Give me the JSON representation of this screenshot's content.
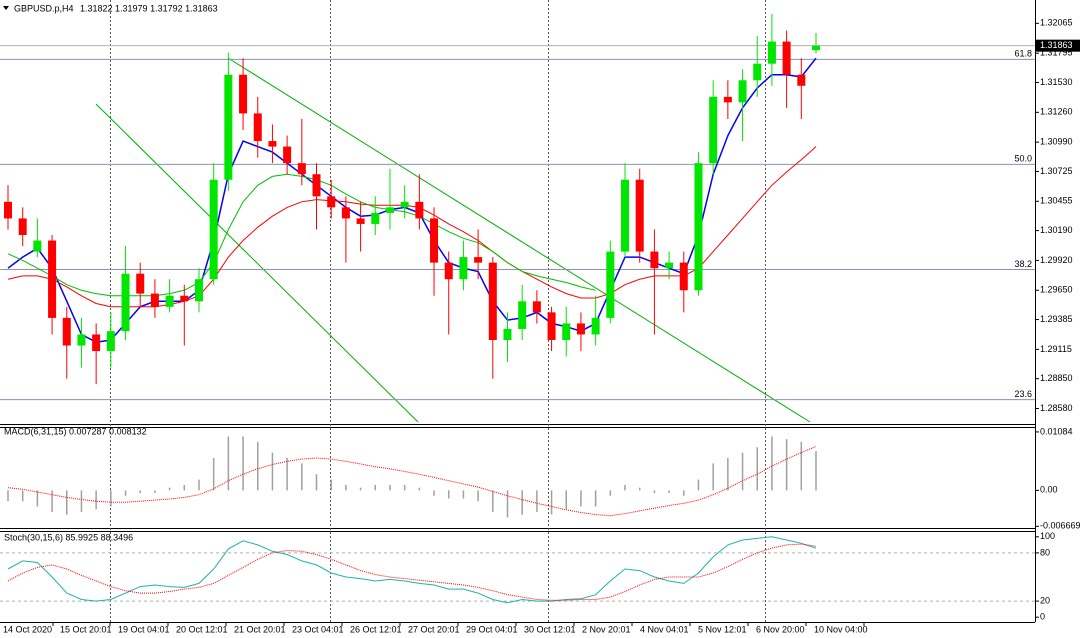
{
  "header": {
    "symbol": "GBPUSD.p,H4",
    "quote": "1.31822 1.31979 1.31792 1.31863"
  },
  "main": {
    "ylim": [
      1.2844,
      1.3224
    ],
    "price_ticks": [
      1.32065,
      1.31795,
      {
        "value": 1.3153,
        "label": "1.31530"
      },
      {
        "value": 1.3126,
        "label": "1.31260"
      },
      {
        "value": 1.3099,
        "label": "1.30990"
      },
      1.30725,
      1.30455,
      {
        "value": 1.3019,
        "label": "1.30190"
      },
      {
        "value": 1.2992,
        "label": "1.29920"
      },
      {
        "value": 1.2965,
        "label": "1.29650"
      },
      1.29385,
      1.29115,
      {
        "value": 1.2885,
        "label": "1.28850"
      },
      {
        "value": 1.2858,
        "label": "1.28580"
      }
    ],
    "current_price": 1.31863,
    "fib_levels": [
      {
        "level": "61.8",
        "price": 1.31739
      },
      {
        "level": "50.0",
        "price": 1.30789
      },
      {
        "level": "38.2",
        "price": 1.29838
      },
      {
        "level": "23.6",
        "price": 1.28661
      }
    ],
    "bull_color": "#00e600",
    "bear_color": "#ff0000",
    "candles": [
      [
        1.3045,
        1.306,
        1.302,
        1.303
      ],
      [
        1.303,
        1.304,
        1.3005,
        1.3015
      ],
      [
        1.3,
        1.303,
        1.2995,
        1.301
      ],
      [
        1.301,
        1.3015,
        1.2925,
        1.294
      ],
      [
        1.294,
        1.295,
        1.2885,
        1.2915
      ],
      [
        1.2915,
        1.294,
        1.2895,
        1.2925
      ],
      [
        1.2925,
        1.2935,
        1.288,
        1.291
      ],
      [
        1.291,
        1.2945,
        1.2895,
        1.2928
      ],
      [
        1.2928,
        1.3005,
        1.292,
        1.298
      ],
      [
        1.298,
        1.299,
        1.295,
        1.2962
      ],
      [
        1.2962,
        1.2975,
        1.294,
        1.295
      ],
      [
        1.295,
        1.2975,
        1.2945,
        1.296
      ],
      [
        1.296,
        1.297,
        1.2915,
        1.2955
      ],
      [
        1.2955,
        1.2985,
        1.2945,
        1.2975
      ],
      [
        1.2975,
        1.308,
        1.297,
        1.3065
      ],
      [
        1.3065,
        1.318,
        1.3055,
        1.316
      ],
      [
        1.316,
        1.3175,
        1.311,
        1.3125
      ],
      [
        1.3125,
        1.314,
        1.3085,
        1.31
      ],
      [
        1.31,
        1.3115,
        1.308,
        1.3095
      ],
      [
        1.3095,
        1.3105,
        1.307,
        1.308
      ],
      [
        1.308,
        1.312,
        1.306,
        1.307
      ],
      [
        1.307,
        1.308,
        1.302,
        1.305
      ],
      [
        1.305,
        1.3065,
        1.303,
        1.304
      ],
      [
        1.304,
        1.305,
        1.299,
        1.303
      ],
      [
        1.303,
        1.3045,
        1.3,
        1.3025
      ],
      [
        1.3025,
        1.305,
        1.3015,
        1.3035
      ],
      [
        1.3035,
        1.3075,
        1.302,
        1.304
      ],
      [
        1.304,
        1.306,
        1.303,
        1.3045
      ],
      [
        1.3045,
        1.307,
        1.302,
        1.303
      ],
      [
        1.303,
        1.304,
        1.296,
        1.299
      ],
      [
        1.299,
        1.3,
        1.2925,
        1.2975
      ],
      [
        1.2975,
        1.301,
        1.2965,
        1.2995
      ],
      [
        1.2995,
        1.302,
        1.2975,
        1.299
      ],
      [
        1.299,
        1.2995,
        1.2885,
        1.292
      ],
      [
        1.292,
        1.2945,
        1.29,
        1.293
      ],
      [
        1.293,
        1.297,
        1.292,
        1.2955
      ],
      [
        1.2955,
        1.2965,
        1.2935,
        1.2945
      ],
      [
        1.2945,
        1.295,
        1.291,
        1.292
      ],
      [
        1.292,
        1.295,
        1.2905,
        1.2935
      ],
      [
        1.2935,
        1.2945,
        1.291,
        1.2925
      ],
      [
        1.2925,
        1.296,
        1.2915,
        1.294
      ],
      [
        1.294,
        1.301,
        1.2935,
        1.3
      ],
      [
        1.3,
        1.308,
        1.2995,
        1.3065
      ],
      [
        1.3065,
        1.3075,
        1.299,
        1.3
      ],
      [
        1.3,
        1.302,
        1.2925,
        1.2985
      ],
      [
        1.2985,
        1.3,
        1.2975,
        1.299
      ],
      [
        1.299,
        1.3,
        1.2945,
        1.2965
      ],
      [
        1.2965,
        1.309,
        1.296,
        1.308
      ],
      [
        1.308,
        1.3155,
        1.307,
        1.314
      ],
      [
        1.314,
        1.3155,
        1.312,
        1.3135
      ],
      [
        1.3135,
        1.3165,
        1.31,
        1.3155
      ],
      [
        1.3155,
        1.3195,
        1.314,
        1.317
      ],
      [
        1.317,
        1.3215,
        1.315,
        1.319
      ],
      [
        1.319,
        1.32,
        1.313,
        1.316
      ],
      [
        1.316,
        1.3175,
        1.312,
        1.315
      ],
      [
        1.31822,
        1.31979,
        1.31792,
        1.31863
      ]
    ],
    "lines": [
      {
        "color": "#0000ff",
        "values": [
          1.2985,
          1.2995,
          1.3003,
          1.2985,
          1.2955,
          1.2925,
          1.2918,
          1.292,
          1.2935,
          1.295,
          1.2955,
          1.2955,
          1.2955,
          1.2965,
          1.301,
          1.307,
          1.31,
          1.3095,
          1.309,
          1.308,
          1.307,
          1.306,
          1.305,
          1.304,
          1.3032,
          1.3033,
          1.3038,
          1.304,
          1.3035,
          1.301,
          1.299,
          1.2985,
          1.2982,
          1.2955,
          1.2938,
          1.294,
          1.2945,
          1.2935,
          1.2932,
          1.2928,
          1.2935,
          1.2965,
          1.2995,
          1.2995,
          1.299,
          1.2985,
          1.298,
          1.3015,
          1.307,
          1.3105,
          1.313,
          1.3148,
          1.316,
          1.316,
          1.3158,
          1.3175
        ]
      },
      {
        "color": "#ff0000",
        "values": [
          1.2975,
          1.2978,
          1.2978,
          1.2975,
          1.2968,
          1.296,
          1.2953,
          1.295,
          1.295,
          1.295,
          1.295,
          1.2952,
          1.2955,
          1.296,
          1.2975,
          1.2995,
          1.301,
          1.3022,
          1.3032,
          1.304,
          1.3045,
          1.3047,
          1.3046,
          1.3045,
          1.3043,
          1.3042,
          1.3042,
          1.3042,
          1.304,
          1.3033,
          1.3025,
          1.3018,
          1.301,
          1.3,
          1.299,
          1.2982,
          1.2975,
          1.2968,
          1.2962,
          1.2958,
          1.2958,
          1.2962,
          1.297,
          1.2975,
          1.2978,
          1.2978,
          1.2978,
          1.2985,
          1.3,
          1.3015,
          1.303,
          1.3045,
          1.306,
          1.3072,
          1.3083,
          1.3095
        ]
      },
      {
        "color": "#00c000",
        "values": [
          1.2998,
          1.2992,
          1.2985,
          1.2978,
          1.297,
          1.2965,
          1.2962,
          1.296,
          1.296,
          1.296,
          1.296,
          1.2962,
          1.2965,
          1.2972,
          1.299,
          1.302,
          1.3045,
          1.306,
          1.3068,
          1.307,
          1.3068,
          1.3065,
          1.306,
          1.3052,
          1.3045,
          1.304,
          1.3038,
          1.3036,
          1.3032,
          1.3025,
          1.3018,
          1.3012,
          1.3008,
          1.3,
          1.299,
          1.2982,
          1.2978,
          1.2975,
          1.2972,
          1.2968,
          1.2965,
          null,
          null,
          null,
          null,
          null,
          null,
          null,
          null,
          null,
          null,
          null,
          null,
          null,
          null,
          null
        ]
      }
    ]
  },
  "macd": {
    "label": "MACD(6,31,15) 0.007287 0.008132",
    "ylim": [
      -0.00698,
      0.01157
    ],
    "ticks": [
      0.01084,
      {
        "value": 0,
        "label": "0.00"
      },
      -0.006669
    ],
    "histogram": [
      -0.002,
      -0.002,
      -0.003,
      -0.004,
      -0.0045,
      -0.004,
      -0.0035,
      -0.003,
      -0.001,
      -0.0005,
      -0.0005,
      0.0005,
      0.001,
      0.002,
      0.006,
      0.01,
      0.01,
      0.009,
      0.007,
      0.006,
      0.005,
      0.003,
      0.002,
      0.001,
      0.0005,
      0.001,
      0.001,
      0.001,
      0.0005,
      -0.001,
      -0.0015,
      -0.0015,
      -0.002,
      -0.004,
      -0.005,
      -0.0045,
      -0.004,
      -0.0045,
      -0.0035,
      -0.003,
      -0.003,
      -0.001,
      0.001,
      0.0005,
      -0.0005,
      -0.0005,
      -0.001,
      0.002,
      0.005,
      0.006,
      0.007,
      0.008,
      0.01,
      0.0095,
      0.009,
      0.007287
    ],
    "signal": [
      0.0005,
      0.0002,
      -0.0003,
      -0.0008,
      -0.0013,
      -0.0017,
      -0.002,
      -0.0022,
      -0.0022,
      -0.002,
      -0.0018,
      -0.0016,
      -0.0013,
      -0.0008,
      0.0003,
      0.0018,
      0.003,
      0.004,
      0.0048,
      0.0054,
      0.0058,
      0.006,
      0.0058,
      0.0054,
      0.0049,
      0.0044,
      0.004,
      0.0035,
      0.003,
      0.0024,
      0.0018,
      0.0012,
      0.0006,
      -0.0002,
      -0.001,
      -0.0017,
      -0.0024,
      -0.003,
      -0.0036,
      -0.0041,
      -0.0045,
      -0.0047,
      -0.0043,
      -0.0038,
      -0.0033,
      -0.0028,
      -0.0024,
      -0.0018,
      -0.0008,
      0.0004,
      0.0018,
      0.003,
      0.0045,
      0.0058,
      0.007,
      0.008132
    ]
  },
  "stoch": {
    "label": "Stoch(30,15,6) 85.9925 88.3496",
    "ylim": [
      -6,
      106
    ],
    "ticks": [
      100,
      80,
      20,
      0
    ],
    "levels": [
      80,
      20
    ],
    "main": [
      60,
      70,
      68,
      50,
      30,
      22,
      20,
      22,
      30,
      38,
      40,
      38,
      37,
      42,
      60,
      85,
      95,
      90,
      82,
      78,
      70,
      65,
      55,
      50,
      48,
      45,
      47,
      45,
      42,
      40,
      35,
      35,
      30,
      22,
      18,
      22,
      20,
      20,
      22,
      23,
      28,
      45,
      60,
      58,
      50,
      45,
      42,
      55,
      75,
      90,
      96,
      98,
      100,
      96,
      92,
      85.9925
    ],
    "signal": [
      45,
      55,
      62,
      65,
      60,
      52,
      45,
      38,
      33,
      30,
      30,
      32,
      35,
      37,
      42,
      52,
      62,
      72,
      80,
      83,
      82,
      78,
      72,
      65,
      58,
      53,
      50,
      48,
      46,
      44,
      42,
      40,
      37,
      33,
      28,
      25,
      22,
      21,
      21,
      22,
      22,
      25,
      32,
      40,
      47,
      50,
      50,
      50,
      55,
      63,
      72,
      80,
      86,
      90,
      91,
      88.3496
    ]
  },
  "time_axis": [
    "14 Oct 2020",
    "15 Oct 20:01",
    "19 Oct 04:01",
    "20 Oct 12:01",
    "21 Oct 20:01",
    "23 Oct 04:01",
    "26 Oct 12:01",
    "27 Oct 20:01",
    "29 Oct 04:01",
    "30 Oct 12:01",
    "2 Nov 20:01",
    "4 Nov 04:01",
    "5 Nov 12:01",
    "6 Nov 20:00",
    "10 Nov 04:00"
  ]
}
